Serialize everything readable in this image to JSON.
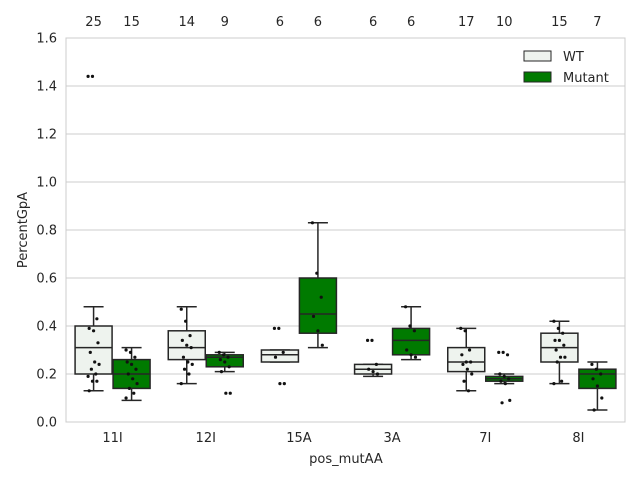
{
  "chart_data": {
    "type": "box",
    "xlabel": "pos_mutAA",
    "ylabel": "PercentGpA",
    "ylim": [
      0.0,
      1.6
    ],
    "yticks": [
      "0.0",
      "0.2",
      "0.4",
      "0.6",
      "0.8",
      "1.0",
      "1.2",
      "1.4",
      "1.6"
    ],
    "grid": "horizontal",
    "legend_position": "top-right",
    "categories": [
      "11I",
      "12I",
      "15A",
      "3A",
      "7I",
      "8I"
    ],
    "series": [
      {
        "name": "WT",
        "color": "#eef3ee",
        "counts": [
          "25",
          "14",
          "6",
          "6",
          "17",
          "15"
        ],
        "boxes": [
          {
            "whisker_low": 0.13,
            "q1": 0.2,
            "median": 0.31,
            "q3": 0.4,
            "whisker_high": 0.48,
            "points": [
              1.44,
              1.44,
              0.43,
              0.39,
              0.38,
              0.33,
              0.29,
              0.25,
              0.24,
              0.22,
              0.2,
              0.19,
              0.17,
              0.17,
              0.13
            ]
          },
          {
            "whisker_low": 0.16,
            "q1": 0.26,
            "median": 0.31,
            "q3": 0.38,
            "whisker_high": 0.48,
            "points": [
              0.47,
              0.42,
              0.36,
              0.34,
              0.32,
              0.31,
              0.27,
              0.25,
              0.24,
              0.22,
              0.2,
              0.16
            ]
          },
          {
            "whisker_low": 0.25,
            "q1": 0.25,
            "median": 0.28,
            "q3": 0.3,
            "whisker_high": 0.3,
            "points": [
              0.39,
              0.39,
              0.29,
              0.27,
              0.16,
              0.16
            ]
          },
          {
            "whisker_low": 0.19,
            "q1": 0.2,
            "median": 0.22,
            "q3": 0.24,
            "whisker_high": 0.24,
            "points": [
              0.34,
              0.34,
              0.24,
              0.22,
              0.21,
              0.2
            ]
          },
          {
            "whisker_low": 0.13,
            "q1": 0.21,
            "median": 0.25,
            "q3": 0.31,
            "whisker_high": 0.39,
            "points": [
              0.39,
              0.38,
              0.3,
              0.28,
              0.25,
              0.25,
              0.24,
              0.22,
              0.2,
              0.17,
              0.13
            ]
          },
          {
            "whisker_low": 0.16,
            "q1": 0.25,
            "median": 0.31,
            "q3": 0.37,
            "whisker_high": 0.42,
            "points": [
              0.42,
              0.39,
              0.37,
              0.34,
              0.34,
              0.32,
              0.3,
              0.27,
              0.27,
              0.25,
              0.17,
              0.16
            ]
          }
        ]
      },
      {
        "name": "Mutant",
        "color": "#007a00",
        "counts": [
          "15",
          "9",
          "6",
          "6",
          "10",
          "7"
        ],
        "boxes": [
          {
            "whisker_low": 0.09,
            "q1": 0.14,
            "median": 0.2,
            "q3": 0.26,
            "whisker_high": 0.31,
            "points": [
              0.3,
              0.29,
              0.27,
              0.25,
              0.24,
              0.22,
              0.2,
              0.18,
              0.16,
              0.14,
              0.12,
              0.1
            ]
          },
          {
            "whisker_low": 0.21,
            "q1": 0.23,
            "median": 0.27,
            "q3": 0.28,
            "whisker_high": 0.29,
            "points": [
              0.29,
              0.28,
              0.27,
              0.26,
              0.25,
              0.23,
              0.21,
              0.12,
              0.12
            ]
          },
          {
            "whisker_low": 0.31,
            "q1": 0.37,
            "median": 0.45,
            "q3": 0.6,
            "whisker_high": 0.83,
            "points": [
              0.83,
              0.62,
              0.52,
              0.44,
              0.38,
              0.32
            ]
          },
          {
            "whisker_low": 0.26,
            "q1": 0.28,
            "median": 0.34,
            "q3": 0.39,
            "whisker_high": 0.48,
            "points": [
              0.48,
              0.4,
              0.38,
              0.3,
              0.28,
              0.27
            ]
          },
          {
            "whisker_low": 0.16,
            "q1": 0.17,
            "median": 0.18,
            "q3": 0.19,
            "whisker_high": 0.2,
            "points": [
              0.29,
              0.29,
              0.28,
              0.2,
              0.19,
              0.18,
              0.17,
              0.16,
              0.09,
              0.08
            ]
          },
          {
            "whisker_low": 0.05,
            "q1": 0.14,
            "median": 0.2,
            "q3": 0.22,
            "whisker_high": 0.25,
            "points": [
              0.24,
              0.22,
              0.2,
              0.18,
              0.15,
              0.1,
              0.05
            ]
          }
        ]
      }
    ]
  }
}
